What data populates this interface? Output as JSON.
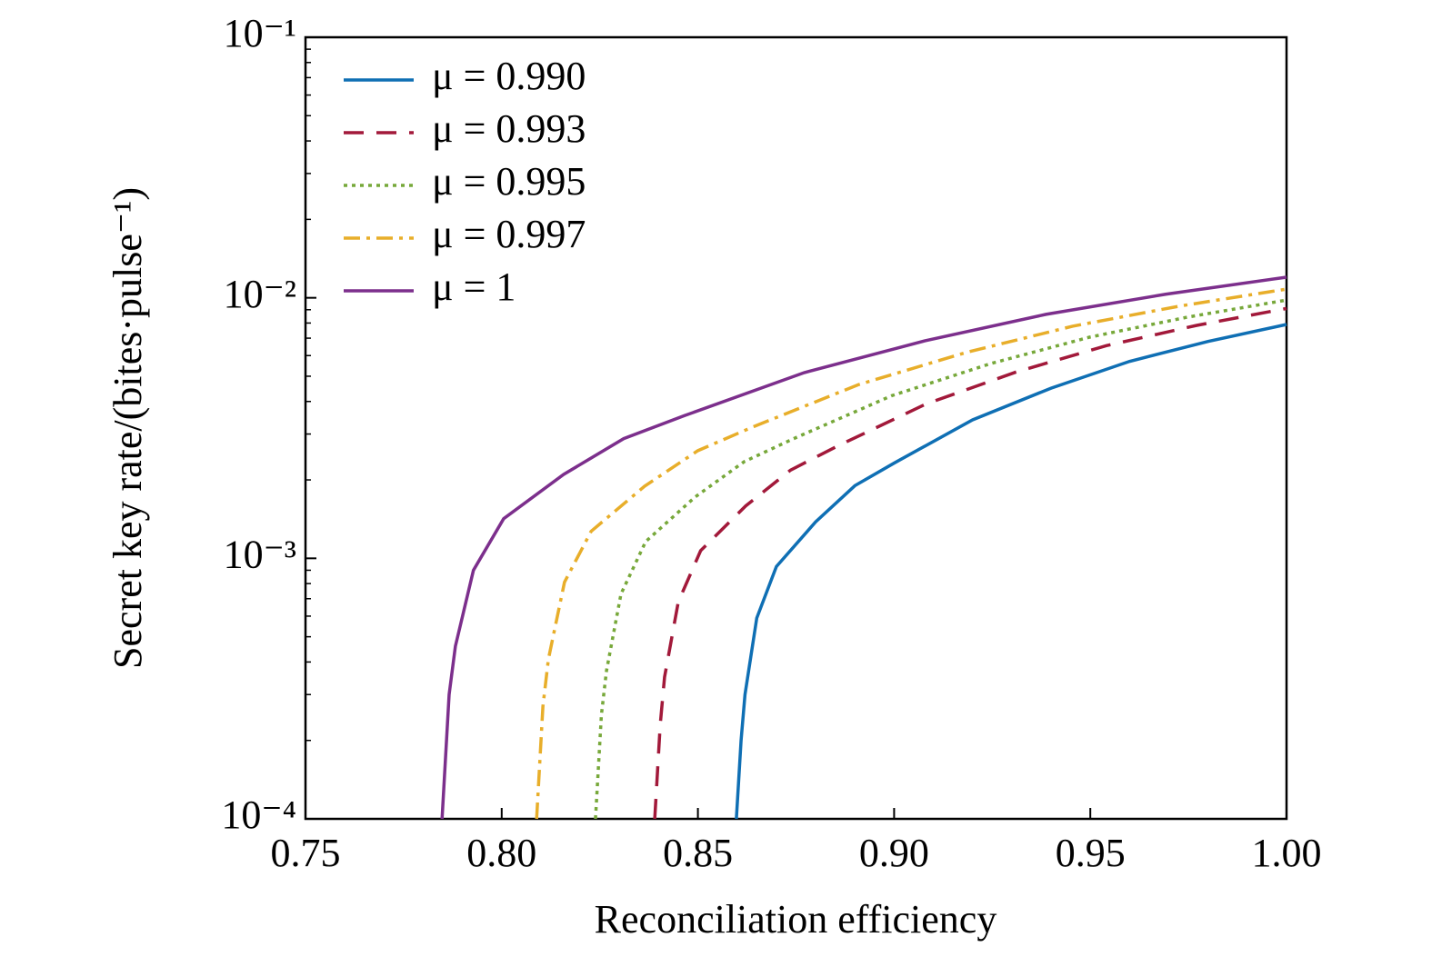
{
  "chart_data": {
    "type": "line",
    "x_label": "Reconciliation efficiency",
    "y_label": "Secret key rate/(bites·pulse⁻¹)",
    "y_scale": "log",
    "legend": "upper-left",
    "xlim": [
      0.75,
      1.0
    ],
    "xticks": [
      0.75,
      {
        "value": 0.8,
        "label": "0.80"
      },
      0.85,
      {
        "value": 0.9,
        "label": "0.90"
      },
      0.95,
      {
        "value": 1.0,
        "label": "1.00"
      }
    ],
    "ylim": [
      0.0001,
      0.1
    ],
    "yticks": [
      {
        "value": 0.0001,
        "label": "10⁻⁴"
      },
      {
        "value": 0.001,
        "label": "10⁻³"
      },
      {
        "value": 0.01,
        "label": "10⁻²"
      },
      {
        "value": 0.1,
        "label": "10⁻¹"
      }
    ],
    "series": [
      {
        "name": "μ = 0.990",
        "color": "#0f6fb4",
        "dash": "solid",
        "x": [
          0.8598,
          0.861,
          0.862,
          0.865,
          0.87,
          0.88,
          0.89,
          0.9,
          0.92,
          0.94,
          0.96,
          0.98,
          1.0
        ],
        "values": [
          0.0001,
          0.0002,
          0.0003,
          0.00059,
          0.00093,
          0.00138,
          0.0019,
          0.00232,
          0.0034,
          0.0045,
          0.0057,
          0.0068,
          0.0079
        ]
      },
      {
        "name": "μ = 0.993",
        "color": "#a2193a",
        "dash": "dashed",
        "x": [
          0.839,
          0.8404,
          0.8415,
          0.845,
          0.8507,
          0.8622,
          0.8736,
          0.8852,
          0.9081,
          0.9311,
          0.9541,
          0.977,
          1.0
        ],
        "values": [
          0.0001,
          0.00023,
          0.00035,
          0.00068,
          0.00107,
          0.00159,
          0.00218,
          0.00268,
          0.00391,
          0.00519,
          0.00655,
          0.00783,
          0.0091
        ]
      },
      {
        "name": "μ = 0.995",
        "color": "#77a83a",
        "dash": "dotted",
        "x": [
          0.8239,
          0.8254,
          0.8267,
          0.8304,
          0.8367,
          0.8493,
          0.8618,
          0.8744,
          0.8994,
          0.9246,
          0.9498,
          0.9748,
          1.0
        ],
        "values": [
          0.0001,
          0.00025,
          0.00037,
          0.00073,
          0.00116,
          0.00172,
          0.00235,
          0.00288,
          0.00421,
          0.00559,
          0.00706,
          0.00843,
          0.0098
        ]
      },
      {
        "name": "μ = 0.997",
        "color": "#e8ae2a",
        "dash": "dashdot",
        "x": [
          0.8089,
          0.8105,
          0.8119,
          0.816,
          0.8228,
          0.8364,
          0.85,
          0.8637,
          0.8909,
          0.9182,
          0.9455,
          0.9727,
          1.0
        ],
        "values": [
          0.0001,
          0.00027,
          0.00041,
          0.00081,
          0.00127,
          0.00189,
          0.00259,
          0.00318,
          0.00464,
          0.00616,
          0.00778,
          0.00929,
          0.0108
        ]
      },
      {
        "name": "μ = 1",
        "color": "#7c2f8c",
        "dash": "solid",
        "x": [
          0.7848,
          0.7866,
          0.7882,
          0.7928,
          0.8005,
          0.8158,
          0.8311,
          0.8466,
          0.8771,
          0.9079,
          0.9387,
          0.9692,
          1.0
        ],
        "values": [
          0.0001,
          0.0003,
          0.00046,
          0.0009,
          0.00142,
          0.0021,
          0.00288,
          0.00353,
          0.00516,
          0.00684,
          0.00864,
          0.01032,
          0.012
        ]
      }
    ]
  }
}
